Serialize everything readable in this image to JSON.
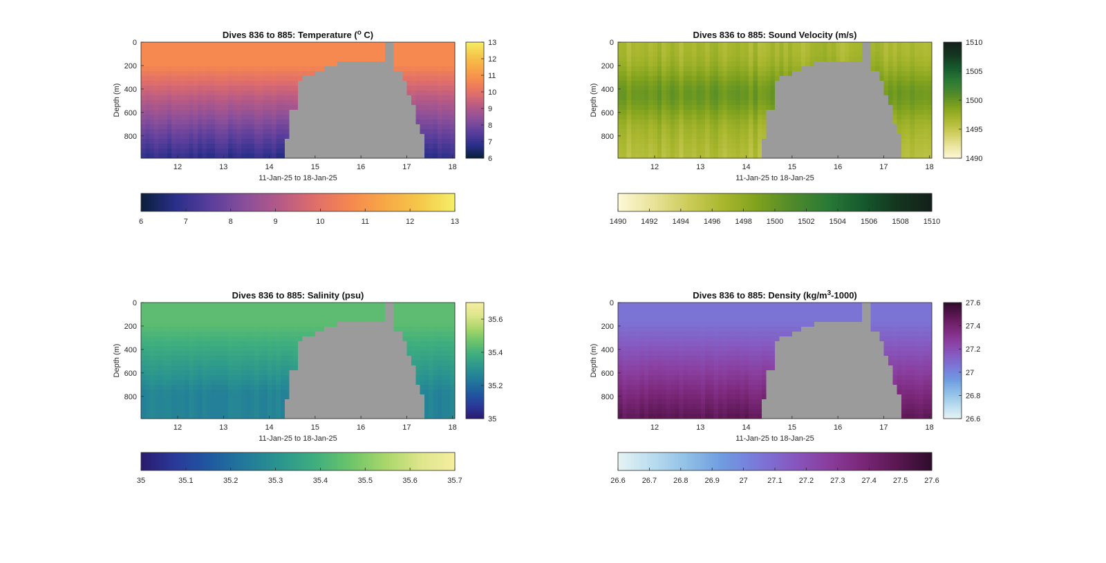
{
  "chart_data": [
    {
      "type": "heatmap",
      "id": "temperature",
      "title": "Dives 836 to 885: Temperature (",
      "title_sup": "o",
      "title_tail": " C)",
      "xlabel": "11-Jan-25 to 18-Jan-25",
      "ylabel": "Depth (m)",
      "xlim": [
        11.2,
        18.05
      ],
      "xticks": [
        "12",
        "13",
        "14",
        "15",
        "16",
        "17",
        "18"
      ],
      "ylim": [
        0,
        990
      ],
      "yticks": [
        "0",
        "200",
        "400",
        "600",
        "800"
      ],
      "no_data_color": "#9b9b9b",
      "surface_value": 10.7,
      "deep_value": 6.8,
      "colormap": [
        "#0a1f3a",
        "#2a2f8a",
        "#5a3e9c",
        "#8a4f9a",
        "#b65a86",
        "#e06e6a",
        "#f5884f",
        "#f7a846",
        "#f5c84a",
        "#f4ee66"
      ],
      "clim": [
        6,
        13
      ],
      "vertical_colorbar_ticks": [
        "6",
        "7",
        "8",
        "9",
        "10",
        "11",
        "12",
        "13"
      ],
      "horizontal_colorbar_ticks": [
        "6",
        "7",
        "8",
        "9",
        "10",
        "11",
        "12",
        "13"
      ]
    },
    {
      "type": "heatmap",
      "id": "sound-velocity",
      "title": "Dives 836 to 885: Sound Velocity (m/s)",
      "xlabel": "11-Jan-25 to 18-Jan-25",
      "ylabel": "Depth (m)",
      "xlim": [
        11.2,
        18.05
      ],
      "xticks": [
        "12",
        "13",
        "14",
        "15",
        "16",
        "17",
        "18"
      ],
      "ylim": [
        0,
        990
      ],
      "yticks": [
        "0",
        "200",
        "400",
        "600",
        "800"
      ],
      "no_data_color": "#9b9b9b",
      "surface_value": 1496.5,
      "deep_value": 1495.0,
      "mid_value": 1501.5,
      "colormap": [
        "#fdf8d6",
        "#e9e39a",
        "#cccc5a",
        "#a9b72e",
        "#7fa11d",
        "#4f8a2a",
        "#2a7a36",
        "#165a2e",
        "#14361f",
        "#14201a"
      ],
      "clim": [
        1490,
        1510
      ],
      "vertical_colorbar_ticks": [
        "1490",
        "1495",
        "1500",
        "1505",
        "1510"
      ],
      "horizontal_colorbar_ticks": [
        "1490",
        "1492",
        "1494",
        "1496",
        "1498",
        "1500",
        "1502",
        "1504",
        "1506",
        "1508",
        "1510"
      ]
    },
    {
      "type": "heatmap",
      "id": "salinity",
      "title": "Dives 836 to 885: Salinity (psu)",
      "xlabel": "11-Jan-25 to 18-Jan-25",
      "ylabel": "Depth (m)",
      "xlim": [
        11.2,
        18.05
      ],
      "xticks": [
        "12",
        "13",
        "14",
        "15",
        "16",
        "17",
        "18"
      ],
      "ylim": [
        0,
        990
      ],
      "yticks": [
        "0",
        "200",
        "400",
        "600",
        "800"
      ],
      "no_data_color": "#9b9b9b",
      "surface_value": 35.44,
      "deep_value": 35.26,
      "colormap": [
        "#2a1a6e",
        "#2a3a9a",
        "#1f5aa0",
        "#227a9a",
        "#2b968e",
        "#3fae7e",
        "#6cc46a",
        "#a8d66a",
        "#dde58a",
        "#f5eea0"
      ],
      "clim": [
        35,
        35.7
      ],
      "vertical_colorbar_ticks": [
        "35",
        "35.2",
        "35.4",
        "35.6"
      ],
      "vertical_colorbar_tick_values": [
        35,
        35.2,
        35.4,
        35.6
      ],
      "horizontal_colorbar_ticks": [
        "35",
        "35.1",
        "35.2",
        "35.3",
        "35.4",
        "35.5",
        "35.6",
        "35.7"
      ]
    },
    {
      "type": "heatmap",
      "id": "density",
      "title": "Dives 836 to 885: Density (kg/m",
      "title_sup": "3",
      "title_tail": "-1000)",
      "xlabel": "11-Jan-25 to 18-Jan-25",
      "ylabel": "Depth (m)",
      "xlim": [
        11.2,
        18.05
      ],
      "xticks": [
        "12",
        "13",
        "14",
        "15",
        "16",
        "17",
        "18"
      ],
      "ylim": [
        0,
        990
      ],
      "yticks": [
        "0",
        "200",
        "400",
        "600",
        "800"
      ],
      "no_data_color": "#9b9b9b",
      "surface_value": 27.06,
      "deep_value": 27.48,
      "colormap": [
        "#e6f2f4",
        "#b9dcef",
        "#8fbfe6",
        "#6f9be0",
        "#7a78d8",
        "#8659c0",
        "#8a3e9e",
        "#7a2778",
        "#5a1752",
        "#2e0d2c"
      ],
      "clim": [
        26.6,
        27.6
      ],
      "vertical_colorbar_ticks": [
        "26.6",
        "26.8",
        "27",
        "27.2",
        "27.4",
        "27.6"
      ],
      "horizontal_colorbar_ticks": [
        "26.6",
        "26.7",
        "26.8",
        "26.9",
        "27",
        "27.1",
        "27.2",
        "27.3",
        "27.4",
        "27.5",
        "27.6"
      ]
    }
  ]
}
